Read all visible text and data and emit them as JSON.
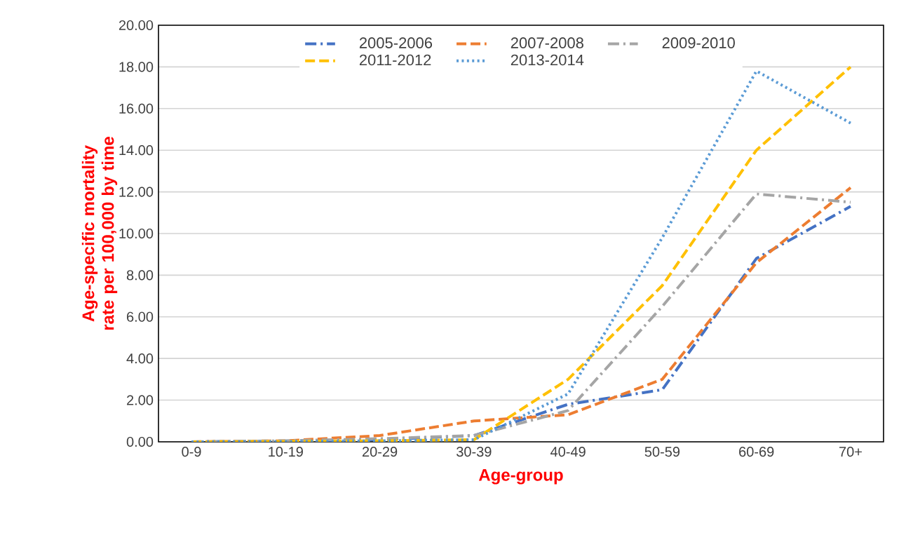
{
  "chart_data": {
    "type": "line",
    "xlabel": "Age-group",
    "ylabel": "Age-specific mortality rate per 100,000 by time",
    "categories": [
      "0-9",
      "10-19",
      "20-29",
      "30-39",
      "40-49",
      "50-59",
      "60-69",
      "70+"
    ],
    "series": [
      {
        "name": "2005-2006",
        "color": "#4472c4",
        "line_style": "dashdot",
        "values": [
          0,
          0.02,
          0.1,
          0.3,
          1.8,
          2.5,
          8.8,
          11.3
        ]
      },
      {
        "name": "2007-2008",
        "color": "#ed7d31",
        "line_style": "dashed",
        "values": [
          0,
          0.05,
          0.3,
          1.0,
          1.3,
          3.0,
          8.6,
          12.2
        ]
      },
      {
        "name": "2009-2010",
        "color": "#a5a5a5",
        "line_style": "dashdot",
        "values": [
          0,
          0.05,
          0.15,
          0.3,
          1.5,
          6.5,
          11.9,
          11.5
        ]
      },
      {
        "name": "2011-2012",
        "color": "#ffc000",
        "line_style": "dashed",
        "values": [
          0,
          0.02,
          0.05,
          0.1,
          3.0,
          7.5,
          14.0,
          18.0
        ]
      },
      {
        "name": "2013-2014",
        "color": "#5b9bd5",
        "line_style": "dotted",
        "values": [
          0,
          0.02,
          0.05,
          0.1,
          2.3,
          9.8,
          17.8,
          15.3
        ]
      }
    ],
    "ylim": [
      0,
      20
    ],
    "yticks": [
      {
        "value": 0,
        "label": "0.00"
      },
      {
        "value": 2,
        "label": "2.00"
      },
      {
        "value": 4,
        "label": "4.00"
      },
      {
        "value": 6,
        "label": "6.00"
      },
      {
        "value": 8,
        "label": "8.00"
      },
      {
        "value": 10,
        "label": "10.00"
      },
      {
        "value": 12,
        "label": "12.00"
      },
      {
        "value": 14,
        "label": "14.00"
      },
      {
        "value": 16,
        "label": "16.00"
      },
      {
        "value": 18,
        "label": "18.00"
      },
      {
        "value": 20,
        "label": "20.00"
      }
    ],
    "grid": "y",
    "legend": "top",
    "marker": "none"
  }
}
